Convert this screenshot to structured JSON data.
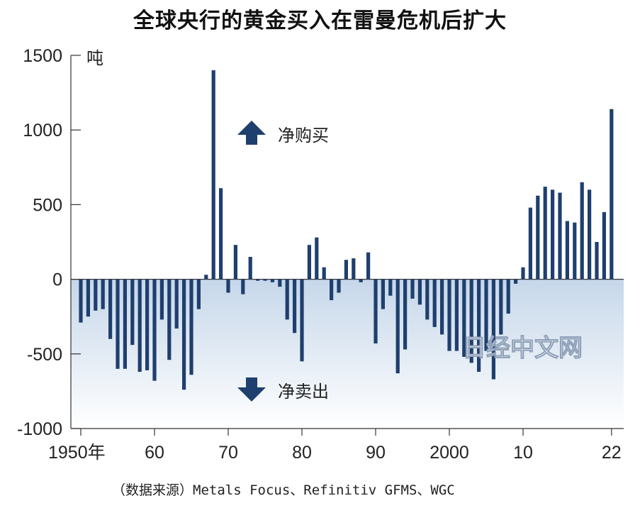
{
  "chart_data": {
    "type": "bar",
    "title": "全球央行的黄金买入在雷曼危机后扩大",
    "ylabel": "吨",
    "ylim": [
      -1000,
      1500
    ],
    "yticks": [
      "1500",
      "1000",
      "500",
      "0",
      "-500",
      "-1000"
    ],
    "xticks": [
      {
        "year": 1950,
        "label": "1950年"
      },
      {
        "year": 1960,
        "label": "60"
      },
      {
        "year": 1970,
        "label": "70"
      },
      {
        "year": 1980,
        "label": "80"
      },
      {
        "year": 1990,
        "label": "90"
      },
      {
        "year": 2000,
        "label": "2000"
      },
      {
        "year": 2010,
        "label": "10"
      },
      {
        "year": 2022,
        "label": "22"
      }
    ],
    "x": [
      1950,
      1951,
      1952,
      1953,
      1954,
      1955,
      1956,
      1957,
      1958,
      1959,
      1960,
      1961,
      1962,
      1963,
      1964,
      1965,
      1966,
      1967,
      1968,
      1969,
      1970,
      1971,
      1972,
      1973,
      1974,
      1975,
      1976,
      1977,
      1978,
      1979,
      1980,
      1981,
      1982,
      1983,
      1984,
      1985,
      1986,
      1987,
      1988,
      1989,
      1990,
      1991,
      1992,
      1993,
      1994,
      1995,
      1996,
      1997,
      1998,
      1999,
      2000,
      2001,
      2002,
      2003,
      2004,
      2005,
      2006,
      2007,
      2008,
      2009,
      2010,
      2011,
      2012,
      2013,
      2014,
      2015,
      2016,
      2017,
      2018,
      2019,
      2020,
      2021,
      2022
    ],
    "values": [
      -290,
      -250,
      -210,
      -200,
      -400,
      -600,
      -600,
      -440,
      -620,
      -610,
      -680,
      -270,
      -540,
      -330,
      -740,
      -640,
      -200,
      30,
      1400,
      610,
      -90,
      230,
      -100,
      150,
      -10,
      -10,
      -20,
      -50,
      -270,
      -360,
      -550,
      230,
      280,
      80,
      -140,
      -90,
      130,
      140,
      -20,
      180,
      -430,
      -200,
      -110,
      -630,
      -470,
      -130,
      -170,
      -270,
      -320,
      -370,
      -480,
      -480,
      -520,
      -560,
      -620,
      -480,
      -670,
      -370,
      -230,
      -30,
      80,
      480,
      560,
      620,
      600,
      580,
      390,
      380,
      650,
      600,
      250,
      450,
      1140
    ],
    "bar_color": "#1f3f6e",
    "annotations": [
      {
        "text": "净购买",
        "arrow": "up"
      },
      {
        "text": "净卖出",
        "arrow": "down"
      }
    ],
    "source": "（数据来源）Metals Focus、Refinitiv GFMS、WGC",
    "watermark": "日经中文网"
  }
}
